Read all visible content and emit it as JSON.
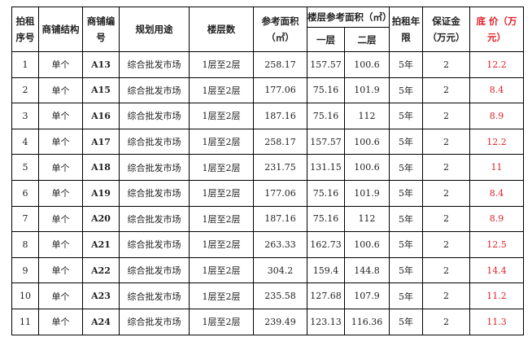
{
  "headers": {
    "seq": "拍租序号",
    "structure": "商铺结构",
    "code": "商铺编号",
    "use": "规划用途",
    "floors": "楼层数",
    "area": "参考面积（㎡）",
    "floor_area": "楼层参考面积（㎡）",
    "floor1": "一层",
    "floor2": "二层",
    "term": "拍租年限",
    "deposit": "保证金（万元）",
    "base_price": "底 价（万元）"
  },
  "colors": {
    "base_price": "#e0202a"
  },
  "rows": [
    {
      "seq": "1",
      "structure": "单个",
      "code": "A13",
      "use": "综合批发市场",
      "floors": "1层至2层",
      "area": "258.17",
      "f1": "157.57",
      "f2": "100.6",
      "term": "5年",
      "deposit": "2",
      "price": "12.2"
    },
    {
      "seq": "2",
      "structure": "单个",
      "code": "A15",
      "use": "综合批发市场",
      "floors": "1层至2层",
      "area": "177.06",
      "f1": "75.16",
      "f2": "101.9",
      "term": "5年",
      "deposit": "2",
      "price": "8.4"
    },
    {
      "seq": "3",
      "structure": "单个",
      "code": "A16",
      "use": "综合批发市场",
      "floors": "1层至2层",
      "area": "187.16",
      "f1": "75.16",
      "f2": "112",
      "term": "5年",
      "deposit": "2",
      "price": "8.9"
    },
    {
      "seq": "4",
      "structure": "单个",
      "code": "A17",
      "use": "综合批发市场",
      "floors": "1层至2层",
      "area": "258.17",
      "f1": "157.57",
      "f2": "100.6",
      "term": "5年",
      "deposit": "2",
      "price": "12.2"
    },
    {
      "seq": "5",
      "structure": "单个",
      "code": "A18",
      "use": "综合批发市场",
      "floors": "1层至2层",
      "area": "231.75",
      "f1": "131.15",
      "f2": "100.6",
      "term": "5年",
      "deposit": "2",
      "price": "11"
    },
    {
      "seq": "6",
      "structure": "单个",
      "code": "A19",
      "use": "综合批发市场",
      "floors": "1层至2层",
      "area": "177.06",
      "f1": "75.16",
      "f2": "101.9",
      "term": "5年",
      "deposit": "2",
      "price": "8.4"
    },
    {
      "seq": "7",
      "structure": "单个",
      "code": "A20",
      "use": "综合批发市场",
      "floors": "1层至2层",
      "area": "187.16",
      "f1": "75.16",
      "f2": "112",
      "term": "5年",
      "deposit": "2",
      "price": "8.9"
    },
    {
      "seq": "8",
      "structure": "单个",
      "code": "A21",
      "use": "综合批发市场",
      "floors": "1层至2层",
      "area": "263.33",
      "f1": "162.73",
      "f2": "100.6",
      "term": "5年",
      "deposit": "2",
      "price": "12.5"
    },
    {
      "seq": "9",
      "structure": "单个",
      "code": "A22",
      "use": "综合批发市场",
      "floors": "1层至2层",
      "area": "304.2",
      "f1": "159.4",
      "f2": "144.8",
      "term": "5年",
      "deposit": "2",
      "price": "14.4"
    },
    {
      "seq": "10",
      "structure": "单个",
      "code": "A23",
      "use": "综合批发市场",
      "floors": "1层至2层",
      "area": "235.58",
      "f1": "127.68",
      "f2": "107.9",
      "term": "5年",
      "deposit": "2",
      "price": "11.2"
    },
    {
      "seq": "11",
      "structure": "单个",
      "code": "A24",
      "use": "综合批发市场",
      "floors": "1层至2层",
      "area": "239.49",
      "f1": "123.13",
      "f2": "116.36",
      "term": "5年",
      "deposit": "2",
      "price": "11.3"
    }
  ]
}
